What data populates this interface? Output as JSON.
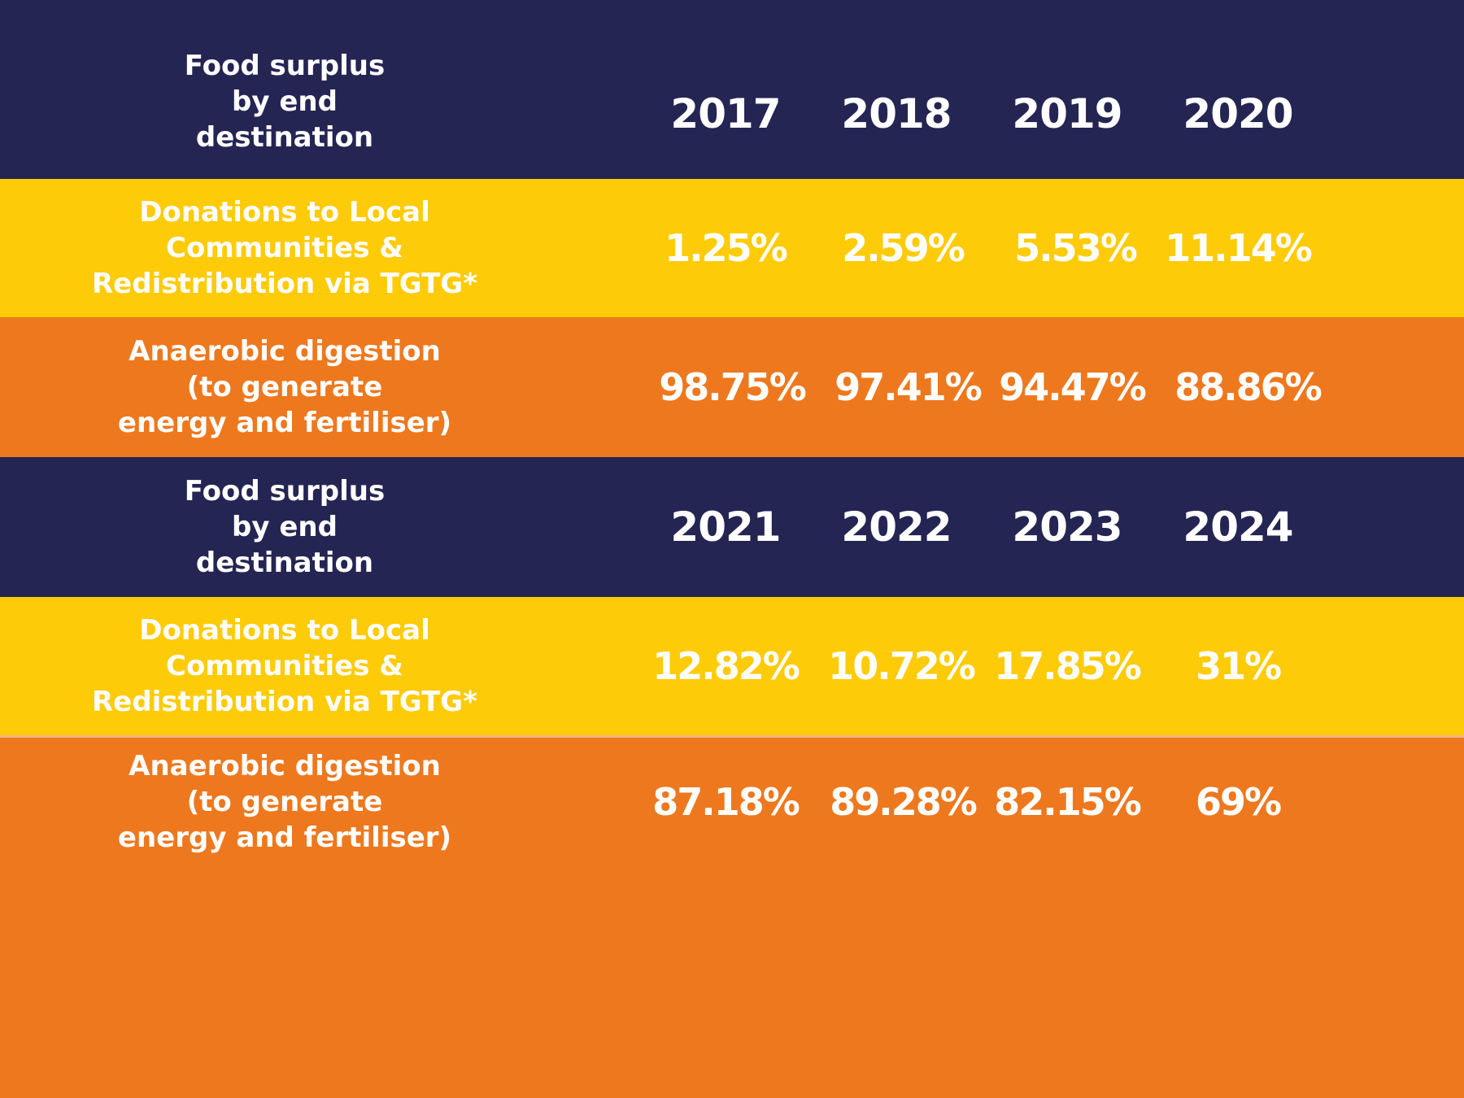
{
  "colors": {
    "header_bg": "#252554",
    "donations_bg": "#fecb08",
    "anaerobic_bg": "#ee781e",
    "text": "#ffffff"
  },
  "chart_data": {
    "type": "table",
    "tables": [
      {
        "header_label": "Food surplus\nby end\ndestination",
        "years": [
          "2017",
          "2018",
          "2019",
          "2020"
        ],
        "rows": [
          {
            "label": "Donations to Local\nCommunities &\nRedistribution via TGTG*",
            "values": [
              "1.25%",
              "2.59%",
              "5.53%",
              "11.14%"
            ]
          },
          {
            "label": "Anaerobic digestion\n(to generate\nenergy and fertiliser)",
            "values": [
              "98.75%",
              "97.41%",
              "94.47%",
              "88.86%"
            ]
          }
        ]
      },
      {
        "header_label": "Food surplus\nby end\ndestination",
        "years": [
          "2021",
          "2022",
          "2023",
          "2024"
        ],
        "rows": [
          {
            "label": "Donations to Local\nCommunities &\nRedistribution via TGTG*",
            "values": [
              "12.82%",
              "10.72%",
              "17.85%",
              "31%"
            ]
          },
          {
            "label": "Anaerobic digestion\n(to generate\nenergy and fertiliser)",
            "values": [
              "87.18%",
              "89.28%",
              "82.15%",
              "69%"
            ]
          }
        ]
      }
    ]
  }
}
